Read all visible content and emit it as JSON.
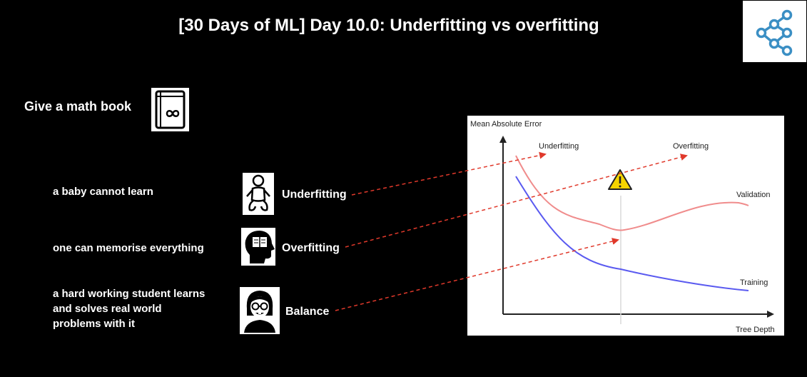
{
  "title": "[30 Days of ML] Day 10.0: Underfitting vs overfitting",
  "logo": {
    "icon": "network-nodes-icon",
    "color": "#3b8fc4"
  },
  "intro": {
    "heading": "Give a math book",
    "icon": "math-book-infinity-icon"
  },
  "rows": [
    {
      "description": "a baby cannot learn",
      "icon": "baby-icon",
      "term": "Underfitting"
    },
    {
      "description": "one can memorise everything",
      "icon": "head-with-book-icon",
      "term": "Overfitting"
    },
    {
      "description": "a hard working student learns\nand solves real world\nproblems with it",
      "icon": "student-with-glasses-icon",
      "term": "Balance"
    }
  ],
  "arrow_color": "#e0392b",
  "chart": {
    "ylabel": "Mean Absolute Error",
    "xlabel": "Tree Depth",
    "annotations": {
      "underfitting": "Underfitting",
      "overfitting": "Overfitting"
    },
    "warning_icon": "warning-triangle-icon",
    "series": [
      {
        "name": "Validation",
        "color": "#f08c8c"
      },
      {
        "name": "Training",
        "color": "#5a5af0"
      }
    ]
  }
}
